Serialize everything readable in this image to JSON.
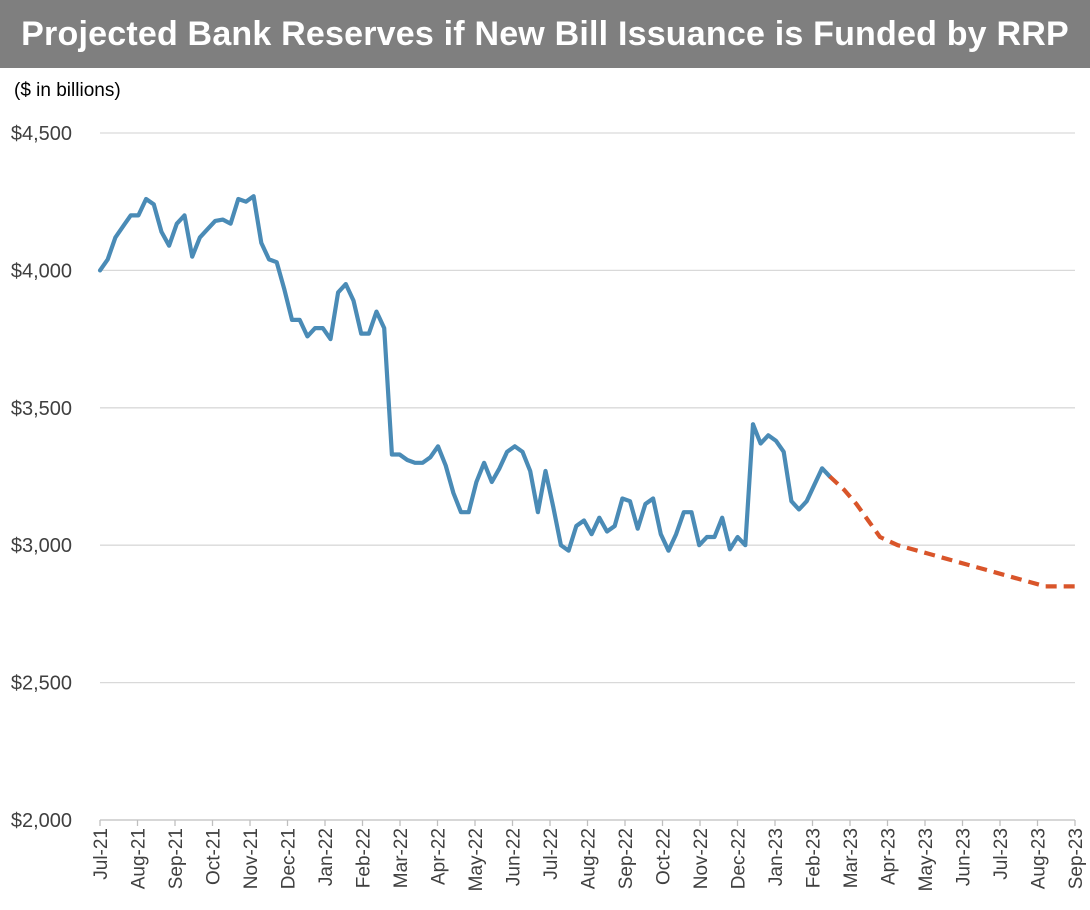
{
  "chart_data": {
    "type": "line",
    "title": "Projected Bank Reserves if New Bill Issuance is Funded by RRP",
    "unit_label": "($ in billions)",
    "xlabel": "",
    "ylabel": "",
    "ylim": [
      2000,
      4500
    ],
    "y_ticks": [
      2000,
      2500,
      3000,
      3500,
      4000,
      4500
    ],
    "y_tick_labels": [
      "$2,000",
      "$2,500",
      "$3,000",
      "$3,500",
      "$4,000",
      "$4,500"
    ],
    "grid": true,
    "legend": "none",
    "x_tick_labels": [
      "Jul-21",
      "Aug-21",
      "Sep-21",
      "Oct-21",
      "Nov-21",
      "Dec-21",
      "Jan-22",
      "Feb-22",
      "Mar-22",
      "Apr-22",
      "May-22",
      "Jun-22",
      "Jul-22",
      "Aug-22",
      "Sep-22",
      "Oct-22",
      "Nov-22",
      "Dec-22",
      "Jan-23",
      "Feb-23",
      "Mar-23",
      "Apr-23",
      "May-23",
      "Jun-23",
      "Jul-23",
      "Aug-23",
      "Sep-23"
    ],
    "series": [
      {
        "style": "solid",
        "color": "#4a8bb6",
        "x": [
          0,
          0.26,
          0.52,
          0.78,
          1.04,
          1.3,
          1.56,
          1.82,
          2.08,
          2.34,
          2.6,
          2.86,
          3.12,
          3.38,
          3.64,
          3.9,
          4.16,
          4.42,
          4.68,
          4.94,
          5.2,
          5.46,
          5.72,
          5.98,
          6.24,
          6.5,
          6.76,
          7.02,
          7.28,
          7.54,
          7.8,
          8.06,
          8.32,
          8.58,
          8.84,
          9.1,
          9.36,
          9.62,
          9.88,
          10.14,
          10.4,
          10.66,
          10.92,
          11.18,
          11.44,
          11.7,
          11.96,
          12.22,
          12.48,
          12.74,
          13.0,
          13.26,
          13.52,
          13.78,
          14.04,
          14.3,
          14.56,
          14.82,
          15.08,
          15.34,
          15.6,
          15.86,
          16.12,
          16.38,
          16.64,
          16.9,
          17.16,
          17.42,
          17.68,
          17.94,
          18.2,
          18.46,
          18.72,
          18.98,
          19.24,
          19.5,
          19.76,
          20.02,
          20.28,
          20.54,
          20.8,
          21.06,
          21.32,
          21.58,
          21.84,
          22.1
        ],
        "values": [
          4000,
          4040,
          4120,
          4160,
          4200,
          4200,
          4260,
          4240,
          4140,
          4090,
          4170,
          4200,
          4050,
          4120,
          4150,
          4180,
          4185,
          4170,
          4260,
          4250,
          4270,
          4100,
          4040,
          4030,
          3930,
          3820,
          3820,
          3760,
          3790,
          3790,
          3750,
          3920,
          3950,
          3890,
          3770,
          3770,
          3850,
          3790,
          3330,
          3330,
          3310,
          3300,
          3300,
          3320,
          3360,
          3290,
          3190,
          3120,
          3120,
          3230,
          3300,
          3230,
          3280,
          3340,
          3360,
          3340,
          3270,
          3120,
          3270,
          3140,
          3000,
          2980,
          3070,
          3090,
          3040,
          3100,
          3050,
          3070,
          3170,
          3160,
          3060,
          3150,
          3170,
          3040,
          2980,
          3040,
          3120,
          3120,
          3000,
          3030,
          3030,
          3100,
          2985,
          3030,
          3000,
          3440
        ]
      },
      {
        "style": "solid",
        "color": "#4a8bb6",
        "x": [
          22.1,
          22.36,
          22.62,
          22.88,
          23.14,
          23.4,
          23.66,
          23.92,
          24.18,
          24.44,
          24.7
        ],
        "values": [
          3440,
          3370,
          3400,
          3380,
          3340,
          3160,
          3130,
          3160,
          3220,
          3280,
          3250
        ]
      },
      {
        "style": "dashed",
        "color": "#d9552a",
        "x": [
          24.7,
          25.2,
          25.6,
          26.0,
          26.4,
          27.0,
          28.0,
          29.0,
          30.0,
          31.0,
          32.0,
          33.0
        ],
        "values": [
          3250,
          3200,
          3150,
          3090,
          3030,
          3000,
          2970,
          2940,
          2910,
          2880,
          2850,
          2850
        ]
      }
    ]
  }
}
